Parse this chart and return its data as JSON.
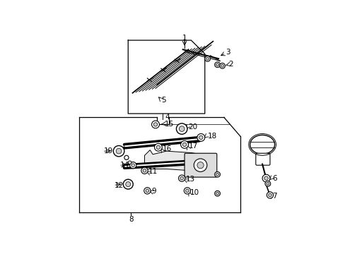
{
  "bg_color": "#ffffff",
  "line_color": "#000000",
  "figsize": [
    4.89,
    3.6
  ],
  "dpi": 100,
  "label_font_size": 7.5
}
